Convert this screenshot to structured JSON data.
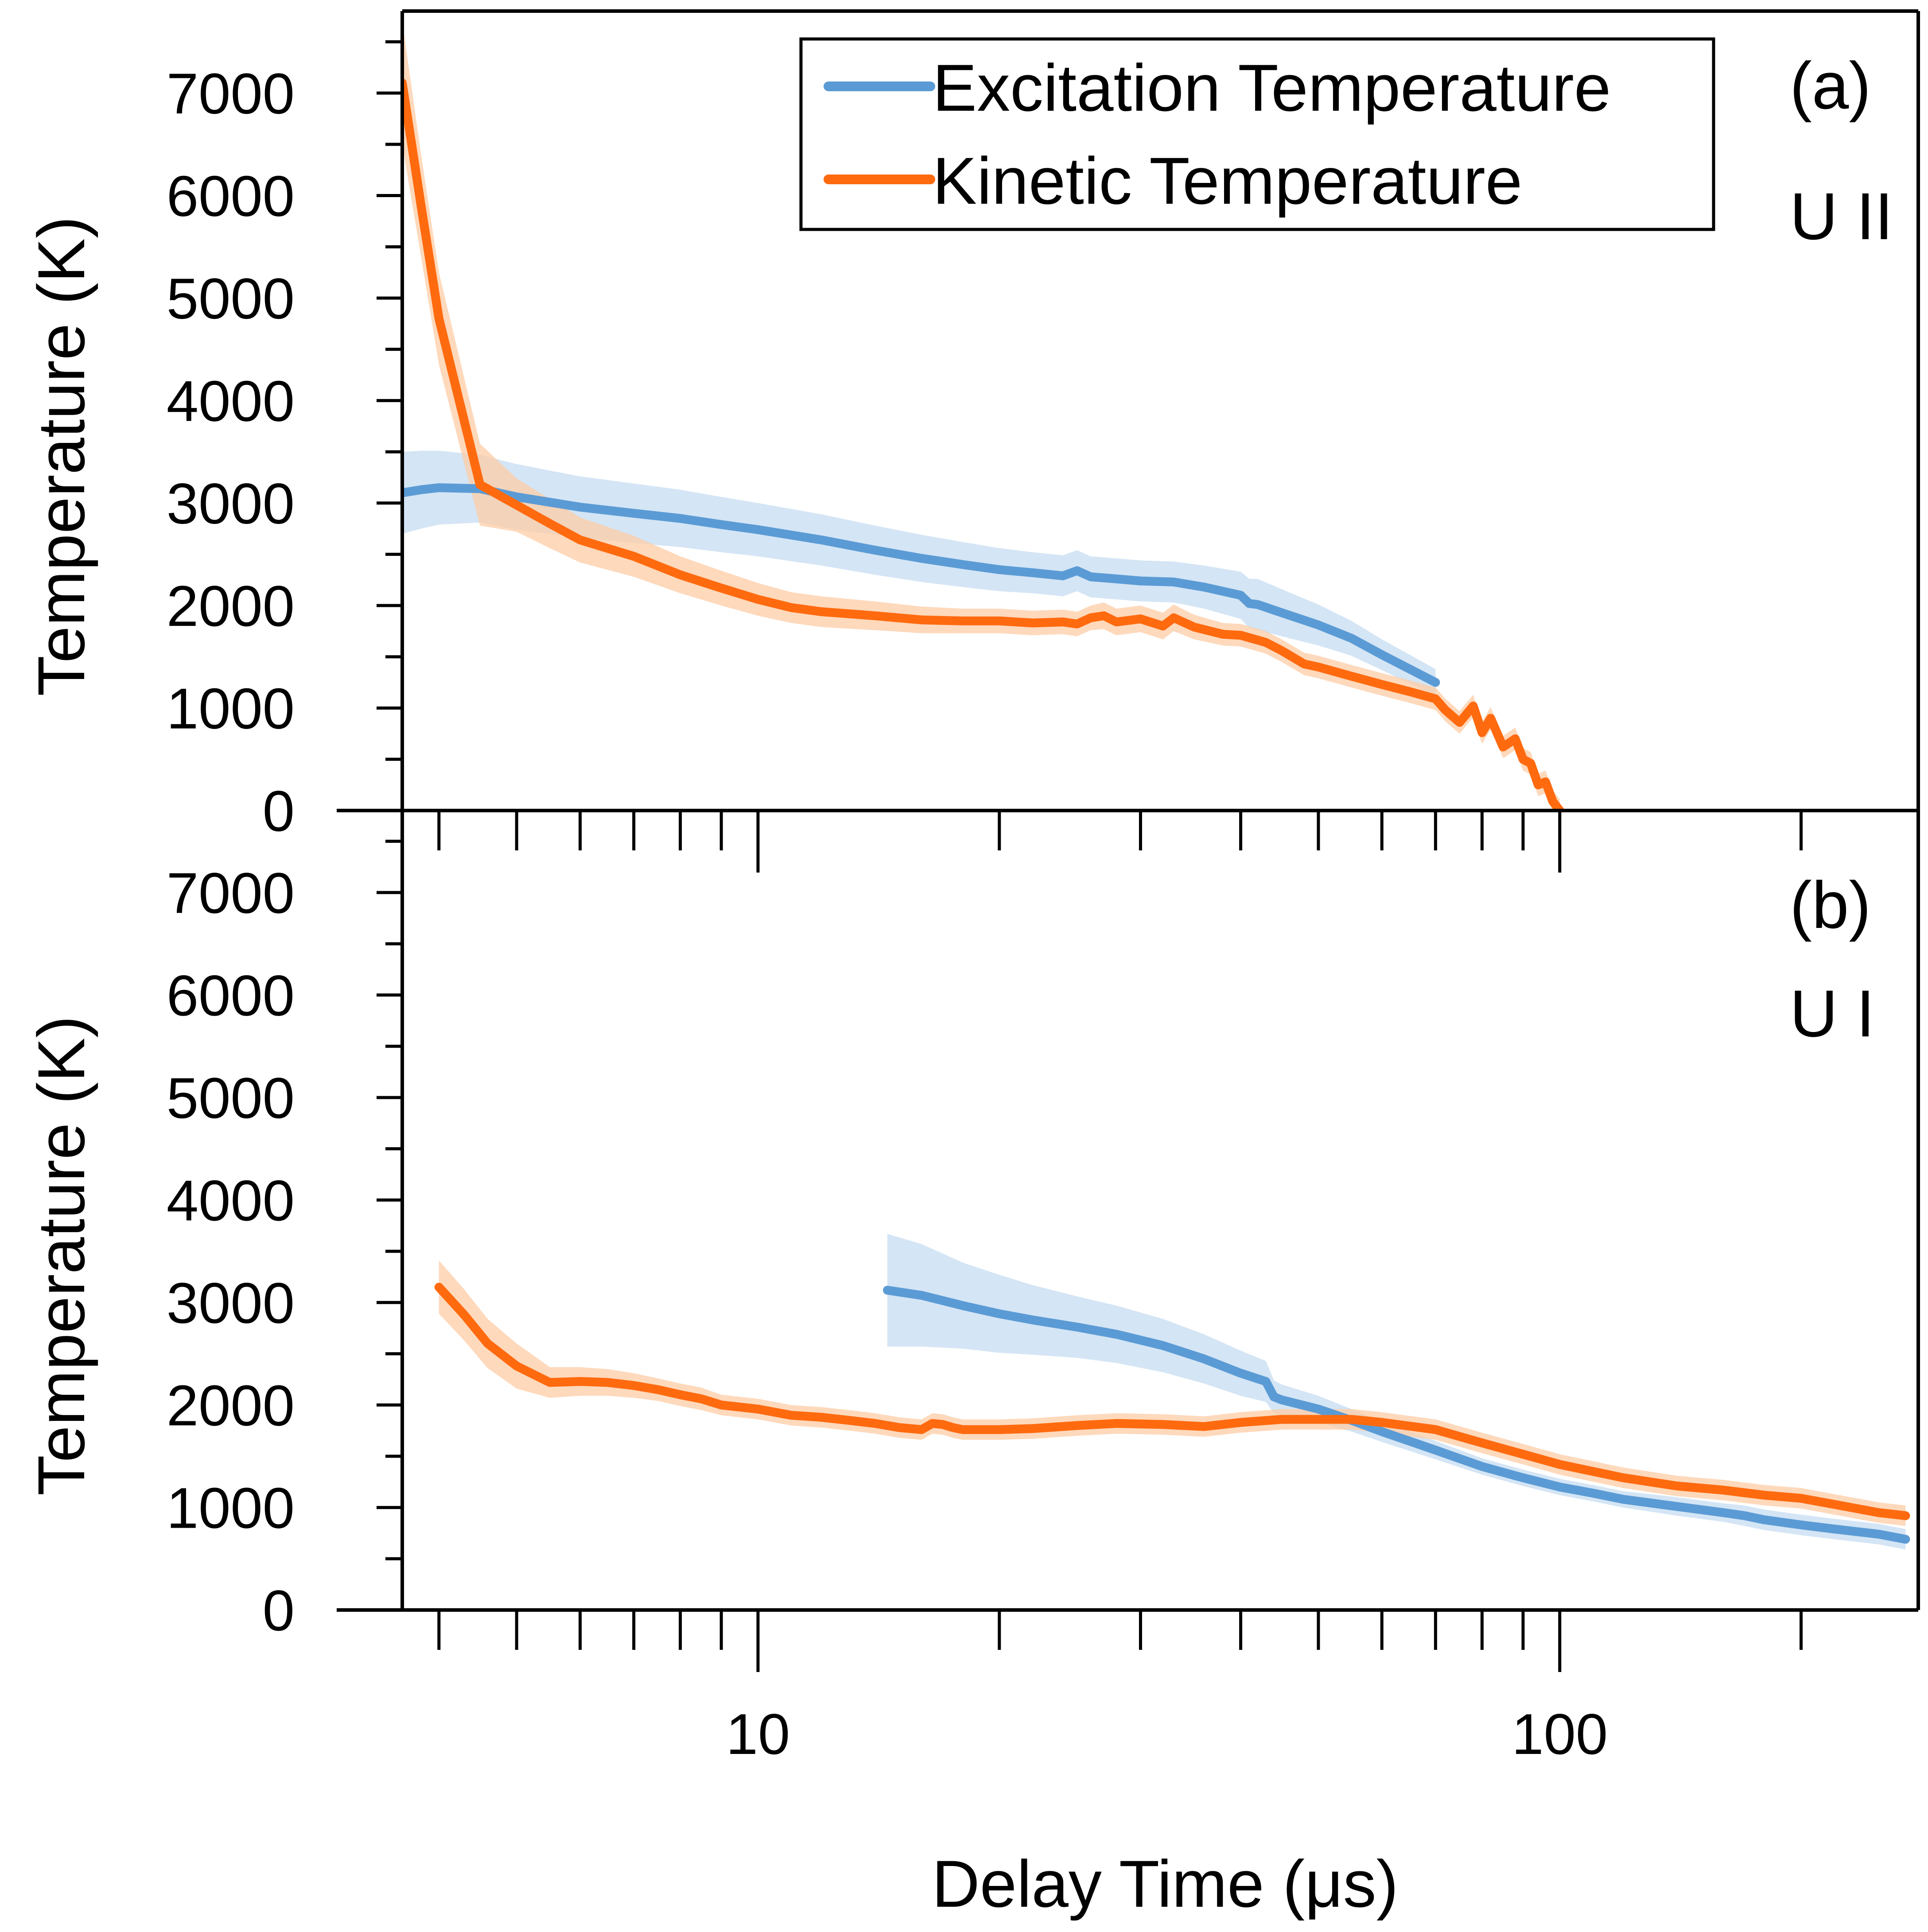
{
  "chart_data": {
    "type": "line",
    "x_scale": "log",
    "x_range": [
      3.6,
      280
    ],
    "y_range": [
      0,
      7800
    ],
    "xlabel": "Delay Time (μs)",
    "ylabel": "Temperature (K)",
    "x_tick_labels": [
      {
        "value": 10,
        "label": "10"
      },
      {
        "value": 100,
        "label": "100"
      }
    ],
    "y_tick_labels": [
      "0",
      "1000",
      "2000",
      "3000",
      "4000",
      "5000",
      "6000",
      "7000"
    ],
    "y_tick_values": [
      0,
      1000,
      2000,
      3000,
      4000,
      5000,
      6000,
      7000
    ],
    "legend": {
      "placement": "top-center",
      "entries": [
        {
          "label": "Excitation Temperature",
          "color": "#5b9bd5"
        },
        {
          "label": "Kinetic Temperature",
          "color": "#ff6a0f"
        }
      ]
    },
    "colors": {
      "excitation": "#5b9bd5",
      "excitation_band": "#c5dcf2",
      "kinetic": "#ff6a0f",
      "kinetic_band": "#fdcca6"
    },
    "panels": [
      {
        "id": "a",
        "label": "(a)",
        "species": "U II",
        "series": [
          {
            "name": "Excitation Temperature",
            "x": [
              3.6,
              3.8,
              4.0,
              4.5,
              5,
              6,
              7,
              8,
              9,
              10,
              12,
              14,
              16,
              18,
              20,
              22,
              24,
              25,
              26,
              28,
              30,
              33,
              36,
              40,
              41,
              42,
              45,
              50,
              55,
              60,
              65,
              70
            ],
            "y": [
              3100,
              3130,
              3150,
              3140,
              3060,
              2960,
              2900,
              2850,
              2790,
              2740,
              2640,
              2540,
              2460,
              2400,
              2350,
              2320,
              2290,
              2340,
              2280,
              2260,
              2240,
              2230,
              2180,
              2100,
              2020,
              2010,
              1930,
              1810,
              1680,
              1520,
              1380,
              1250
            ],
            "err": [
              400,
              380,
              360,
              330,
              320,
              300,
              290,
              280,
              270,
              260,
              250,
              240,
              230,
              220,
              210,
              200,
              200,
              200,
              200,
              200,
              200,
              200,
              210,
              230,
              240,
              250,
              230,
              200,
              170,
              150,
              140,
              130
            ]
          },
          {
            "name": "Kinetic Temperature",
            "x": [
              3.6,
              3.8,
              4.0,
              4.5,
              5,
              5.5,
              6,
              7,
              8,
              9,
              10,
              11,
              12,
              14,
              16,
              18,
              20,
              22,
              24,
              25,
              26,
              27,
              28,
              30,
              32,
              33,
              35,
              38,
              40,
              43,
              45,
              48,
              50,
              55,
              60,
              65,
              70,
              72,
              75,
              78,
              80,
              82,
              85,
              88,
              90,
              92,
              94,
              96,
              98,
              100
            ],
            "y": [
              7100,
              5900,
              4800,
              3180,
              2980,
              2800,
              2640,
              2480,
              2300,
              2170,
              2060,
              1980,
              1940,
              1900,
              1860,
              1850,
              1850,
              1830,
              1840,
              1820,
              1880,
              1900,
              1840,
              1870,
              1800,
              1880,
              1790,
              1720,
              1710,
              1640,
              1560,
              1430,
              1400,
              1310,
              1230,
              1160,
              1090,
              980,
              860,
              1020,
              760,
              900,
              620,
              700,
              500,
              460,
              250,
              280,
              90,
              0
            ],
            "err": [
              600,
              500,
              450,
              400,
              260,
              240,
              220,
              200,
              180,
              170,
              160,
              150,
              150,
              140,
              130,
              120,
              120,
              120,
              120,
              120,
              120,
              130,
              130,
              130,
              130,
              130,
              120,
              110,
              110,
              110,
              110,
              110,
              110,
              110,
              110,
              110,
              110,
              110,
              110,
              110,
              110,
              110,
              110,
              110,
              110,
              110,
              110,
              110,
              110,
              110
            ]
          }
        ]
      },
      {
        "id": "b",
        "label": "(b)",
        "species": "U I",
        "series": [
          {
            "name": "Excitation Temperature",
            "x": [
              14.5,
              16,
              18,
              20,
              22,
              25,
              28,
              32,
              36,
              40,
              43,
              44,
              45,
              50,
              55,
              60,
              70,
              80,
              90,
              100,
              110,
              120,
              140,
              160,
              170,
              180,
              200,
              220,
              250,
              270
            ],
            "y": [
              3120,
              3070,
              2970,
              2890,
              2830,
              2760,
              2690,
              2580,
              2450,
              2310,
              2230,
              2080,
              2050,
              1960,
              1850,
              1740,
              1560,
              1400,
              1290,
              1200,
              1140,
              1080,
              1010,
              950,
              920,
              880,
              830,
              790,
              740,
              690
            ],
            "err": [
              550,
              500,
              420,
              380,
              340,
              300,
              280,
              260,
              240,
              220,
              200,
              160,
              150,
              130,
              110,
              100,
              90,
              80,
              80,
              80,
              80,
              80,
              90,
              90,
              100,
              100,
              100,
              100,
              100,
              100
            ]
          },
          {
            "name": "Kinetic Temperature",
            "x": [
              4.0,
              4.3,
              4.6,
              5.0,
              5.5,
              6.0,
              6.5,
              7.0,
              7.5,
              8.0,
              8.5,
              9.0,
              10,
              11,
              12,
              13,
              14,
              15,
              16,
              16.5,
              17,
              17.5,
              18,
              20,
              22,
              25,
              28,
              32,
              36,
              40,
              45,
              50,
              55,
              60,
              70,
              80,
              90,
              100,
              120,
              140,
              160,
              180,
              200,
              220,
              250,
              270
            ],
            "y": [
              3150,
              2880,
              2600,
              2380,
              2220,
              2230,
              2220,
              2190,
              2150,
              2100,
              2060,
              2000,
              1960,
              1900,
              1880,
              1850,
              1820,
              1780,
              1760,
              1820,
              1810,
              1780,
              1760,
              1760,
              1770,
              1800,
              1820,
              1810,
              1790,
              1830,
              1860,
              1860,
              1860,
              1830,
              1760,
              1630,
              1520,
              1420,
              1290,
              1210,
              1170,
              1120,
              1090,
              1030,
              950,
              920
            ],
            "err": [
              260,
              250,
              240,
              220,
              150,
              140,
              130,
              120,
              110,
              110,
              110,
              100,
              100,
              100,
              100,
              100,
              100,
              100,
              100,
              100,
              100,
              100,
              100,
              100,
              100,
              100,
              100,
              100,
              100,
              100,
              100,
              100,
              100,
              100,
              100,
              100,
              100,
              100,
              100,
              100,
              100,
              100,
              100,
              100,
              100,
              100
            ]
          }
        ]
      }
    ]
  }
}
